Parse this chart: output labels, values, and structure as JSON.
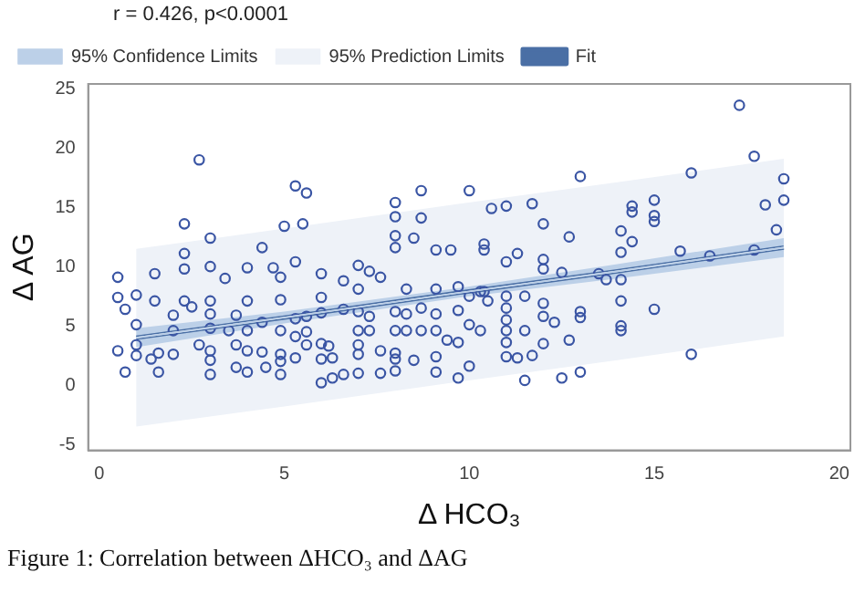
{
  "chart_data": {
    "type": "scatter",
    "xlabel": "Δ HCO₃",
    "ylabel": "Δ AG",
    "xlim": [
      -0.3,
      20.3
    ],
    "ylim": [
      -5.5,
      25.4
    ],
    "xticks": [
      0,
      5,
      10,
      15,
      20
    ],
    "yticks": [
      -5,
      0,
      5,
      10,
      15,
      20,
      25
    ],
    "grid": false,
    "legend": "top left",
    "annotations": [
      "r = 0.426, p<0.0001",
      "Figure 1: Correlation between ΔHCO₃ and ΔAG"
    ],
    "series": [
      {
        "type": "line",
        "name": "Fit",
        "color": "#4a6fa5",
        "x": [
          1,
          5,
          9.75,
          14,
          18.5
        ],
        "values": [
          4.0,
          5.7,
          7.8,
          9.6,
          11.6
        ]
      },
      {
        "type": "line",
        "name": "95% Confidence Limits",
        "color": "#bcd0e8",
        "x": [
          1,
          5,
          9.75,
          14,
          18.5
        ],
        "values": [
          4.0,
          5.7,
          7.8,
          9.6,
          11.6
        ],
        "lower": [
          3.2,
          5.2,
          7.4,
          9,
          10.8
        ],
        "upper": [
          4.8,
          6.2,
          8.2,
          10.2,
          12.4
        ]
      },
      {
        "type": "line",
        "name": "95% Prediction Limits",
        "color": "#eef2f8",
        "x": [
          1,
          5,
          9.75,
          14,
          18.5
        ],
        "values": [
          4.0,
          5.7,
          7.8,
          9.6,
          11.6
        ],
        "lower": [
          -3.5,
          -1.8,
          0.3,
          2.1,
          4.1
        ],
        "upper": [
          11.5,
          13.2,
          15.3,
          17.1,
          19.1
        ]
      },
      {
        "type": "scatter",
        "marker": "circle",
        "color": "#3a55a4",
        "x": [
          2.7,
          5.3,
          5.6,
          2.3,
          5.5,
          5.0,
          3.0,
          8.0,
          8.7,
          8.0,
          8.7,
          8.0,
          8.5,
          8.0,
          2.3,
          4.4,
          5.3,
          0.5,
          1.5,
          2.3,
          3.0,
          3.4,
          4.0,
          4.7,
          4.9,
          6.0,
          7.0,
          7.3,
          7.6,
          0.5,
          1.0,
          1.5,
          2.3,
          3.0,
          4.0,
          4.9,
          6.0,
          6.6,
          7.0,
          8.3,
          0.7,
          1.0,
          2.0,
          2.5,
          3.0,
          3.7,
          2.0,
          3.0,
          3.5,
          4.0,
          4.4,
          4.9,
          5.3,
          5.6,
          6.0,
          6.6,
          7.0,
          7.3,
          8.0,
          8.3,
          0.5,
          1.0,
          1.0,
          1.4,
          1.6,
          2.0,
          0.7,
          1.6,
          2.7,
          3.0,
          3.0,
          3.0,
          3.7,
          4.0,
          4.4,
          3.7,
          4.0,
          4.5,
          4.9,
          4.9,
          4.9,
          5.3,
          5.3,
          5.6,
          5.6,
          6.0,
          6.2,
          6.0,
          6.3,
          6.0,
          6.3,
          6.6,
          7.0,
          7.0,
          7.0,
          7.0,
          7.3,
          7.6,
          8.0,
          7.6,
          8.0,
          8.0,
          8.0,
          8.5,
          8.3,
          9.1,
          9.7,
          8.7,
          9.1,
          9.7,
          8.7,
          9.1,
          9.4,
          9.7,
          9.1,
          9.1,
          9.7,
          10.0,
          10.0,
          10.3,
          10.3,
          10.5,
          11.0,
          11.0,
          11.0,
          11.0,
          11.5,
          11.5,
          11.0,
          11.0,
          11.3,
          11.7,
          12.0,
          12.0,
          12.3,
          12.0,
          12.7,
          11.5,
          12.5,
          13.0,
          13.0,
          13.0,
          14.1,
          14.1,
          14.1,
          15.0,
          16.0,
          17.3,
          17.7,
          18.5,
          18.5,
          18.0,
          18.3,
          17.7,
          16.5,
          15.7,
          16.0,
          13.0,
          15.0,
          14.4,
          14.4,
          15.0,
          15.0,
          14.1,
          14.4,
          14.1,
          12.7,
          12.0,
          11.7,
          11.0,
          10.6,
          10.0,
          9.1,
          9.5,
          10.4,
          10.4,
          11.0,
          11.3,
          12.0,
          12.0,
          12.5,
          13.5,
          13.7,
          14.1,
          10.0,
          10.4
        ],
        "values": [
          19.0,
          16.8,
          16.2,
          13.6,
          13.6,
          13.4,
          12.4,
          15.4,
          16.4,
          14.2,
          14.1,
          12.6,
          12.4,
          11.6,
          11.1,
          11.6,
          10.4,
          9.1,
          9.4,
          9.8,
          10.0,
          9.0,
          9.9,
          9.9,
          9.1,
          9.4,
          10.1,
          9.6,
          9.1,
          7.4,
          7.6,
          7.1,
          7.1,
          7.1,
          7.1,
          7.2,
          7.4,
          8.8,
          8.1,
          8.1,
          6.4,
          5.1,
          5.9,
          6.6,
          6.0,
          5.9,
          4.6,
          4.8,
          4.6,
          4.6,
          5.3,
          4.6,
          5.6,
          5.8,
          6.1,
          6.4,
          6.2,
          5.8,
          6.2,
          6.0,
          2.9,
          3.4,
          2.5,
          2.2,
          2.7,
          2.6,
          1.1,
          1.1,
          3.4,
          2.9,
          2.1,
          0.9,
          3.4,
          2.9,
          2.8,
          1.5,
          1.1,
          1.5,
          2.6,
          2.0,
          0.9,
          2.3,
          4.1,
          4.5,
          3.4,
          3.5,
          3.3,
          2.2,
          2.3,
          0.2,
          0.6,
          0.9,
          1.0,
          2.6,
          3.4,
          4.6,
          4.6,
          1.0,
          1.2,
          2.9,
          2.7,
          2.2,
          4.6,
          2.1,
          4.6,
          8.1,
          8.3,
          6.5,
          6.0,
          6.3,
          4.6,
          4.6,
          3.8,
          3.6,
          2.4,
          1.1,
          0.6,
          1.6,
          5.1,
          4.6,
          7.9,
          7.1,
          7.5,
          6.5,
          5.5,
          4.6,
          7.5,
          4.6,
          3.6,
          2.4,
          2.3,
          2.5,
          6.9,
          5.8,
          5.3,
          3.5,
          3.8,
          0.4,
          0.6,
          1.1,
          6.2,
          5.7,
          7.1,
          5.0,
          4.6,
          6.4,
          2.6,
          23.6,
          19.3,
          17.4,
          15.6,
          15.2,
          13.1,
          11.4,
          10.9,
          11.3,
          17.9,
          17.6,
          15.6,
          15.1,
          14.6,
          14.3,
          13.8,
          13.0,
          12.1,
          11.2,
          12.5,
          13.6,
          15.3,
          15.1,
          14.9,
          16.4,
          11.4,
          11.4,
          11.9,
          11.4,
          10.4,
          11.1,
          10.6,
          9.8,
          9.5,
          9.4,
          8.9,
          8.9,
          7.5,
          7.9
        ]
      }
    ]
  }
}
